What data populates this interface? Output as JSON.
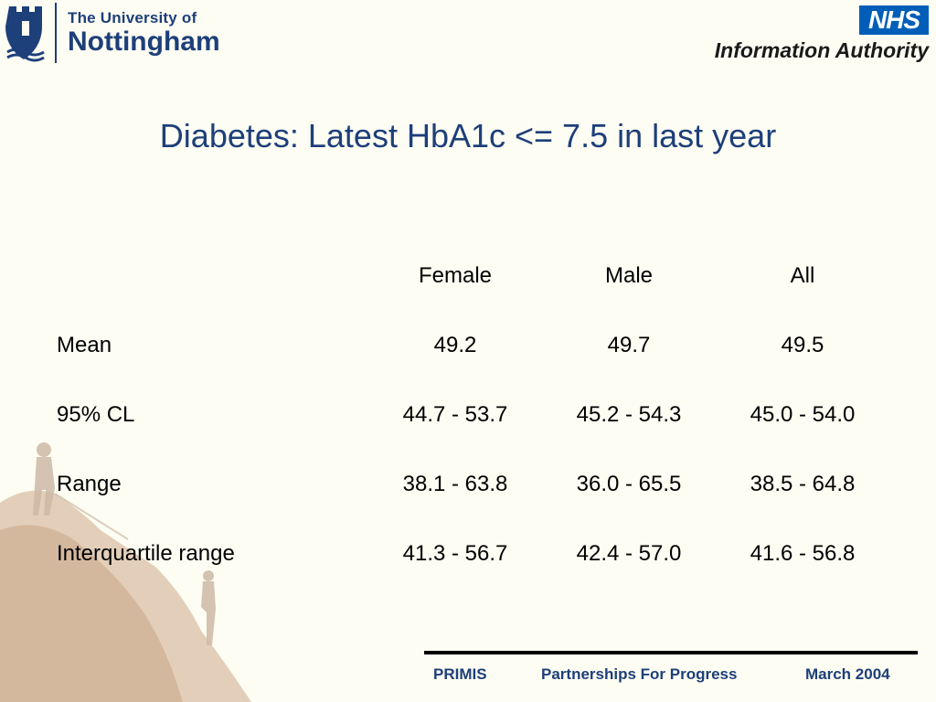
{
  "header": {
    "university": {
      "line1": "The University of",
      "line2": "Nottingham"
    },
    "nhs": {
      "badge": "NHS",
      "authority": "Information Authority"
    }
  },
  "title": "Diabetes: Latest HbA1c <= 7.5 in last year",
  "table": {
    "columns": [
      "Female",
      "Male",
      "All"
    ],
    "rows": [
      {
        "label": "Mean",
        "values": [
          "49.2",
          "49.7",
          "49.5"
        ]
      },
      {
        "label": "95% CL",
        "values": [
          "44.7 - 53.7",
          "45.2 - 54.3",
          "45.0 - 54.0"
        ]
      },
      {
        "label": "Range",
        "values": [
          "38.1 - 63.8",
          "36.0 - 65.5",
          "38.5 - 64.8"
        ]
      },
      {
        "label": "Interquartile range",
        "values": [
          "41.3 - 56.7",
          "42.4 - 57.0",
          "41.6 - 56.8"
        ]
      }
    ]
  },
  "footer": {
    "left": "PRIMIS",
    "center": "Partnerships For Progress",
    "right": "March 2004"
  },
  "colors": {
    "background": "#fdfdf3",
    "title": "#1d3f7a",
    "nhs_blue": "#005eb8",
    "footer_text": "#1d3f7a"
  },
  "icons": {
    "university_crest": "castle-crest-icon",
    "decor_image": "rock-climbers-image"
  }
}
